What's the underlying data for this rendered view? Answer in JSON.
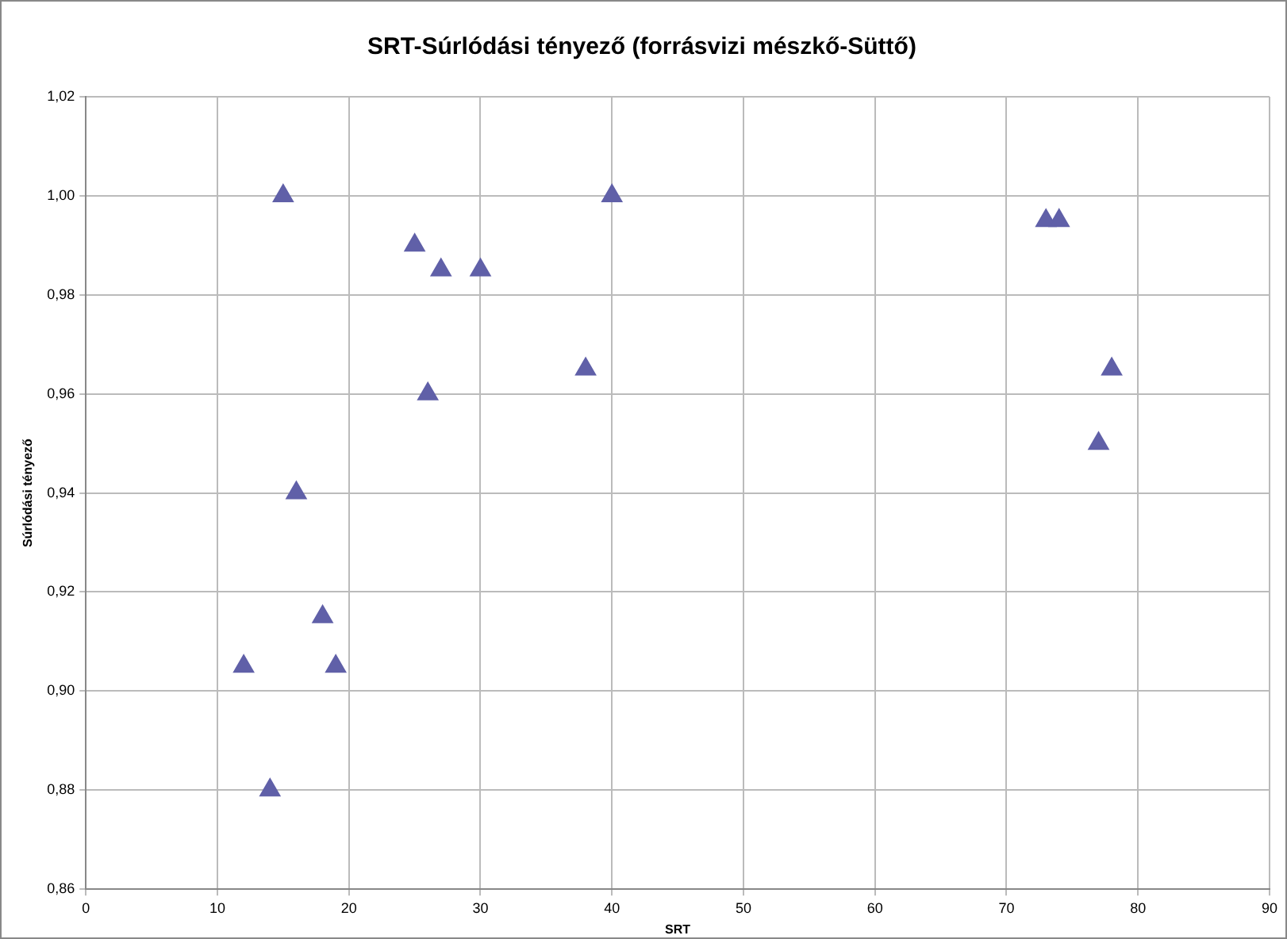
{
  "chart_data": {
    "type": "scatter",
    "title": "SRT-Súrlódási tényező (forrásvizi mészkő-Süttő)",
    "xlabel": "SRT",
    "ylabel": "Súrlódási tényező",
    "x": [
      12,
      14,
      15,
      16,
      18,
      19,
      25,
      26,
      27,
      30,
      38,
      40,
      73,
      74,
      77,
      78
    ],
    "values": [
      0.905,
      0.88,
      1.0,
      0.94,
      0.915,
      0.905,
      0.99,
      0.96,
      0.985,
      0.985,
      0.965,
      1.0,
      0.995,
      0.995,
      0.95,
      0.965
    ],
    "color": "#6060a8",
    "marker": "triangle",
    "grid": true,
    "legend": false,
    "xlim": [
      0,
      90
    ],
    "xticks": [
      0,
      10,
      20,
      30,
      40,
      50,
      60,
      70,
      80,
      90
    ],
    "ylim": [
      0.86,
      1.02
    ],
    "yticks": [
      {
        "value": 0.86,
        "label": "0,86"
      },
      {
        "value": 0.88,
        "label": "0,88"
      },
      {
        "value": 0.9,
        "label": "0,90"
      },
      {
        "value": 0.92,
        "label": "0,92"
      },
      {
        "value": 0.94,
        "label": "0,94"
      },
      {
        "value": 0.96,
        "label": "0,96"
      },
      {
        "value": 0.98,
        "label": "0,98"
      },
      {
        "value": 1.0,
        "label": "1,00"
      },
      {
        "value": 1.02,
        "label": "1,02"
      }
    ]
  }
}
